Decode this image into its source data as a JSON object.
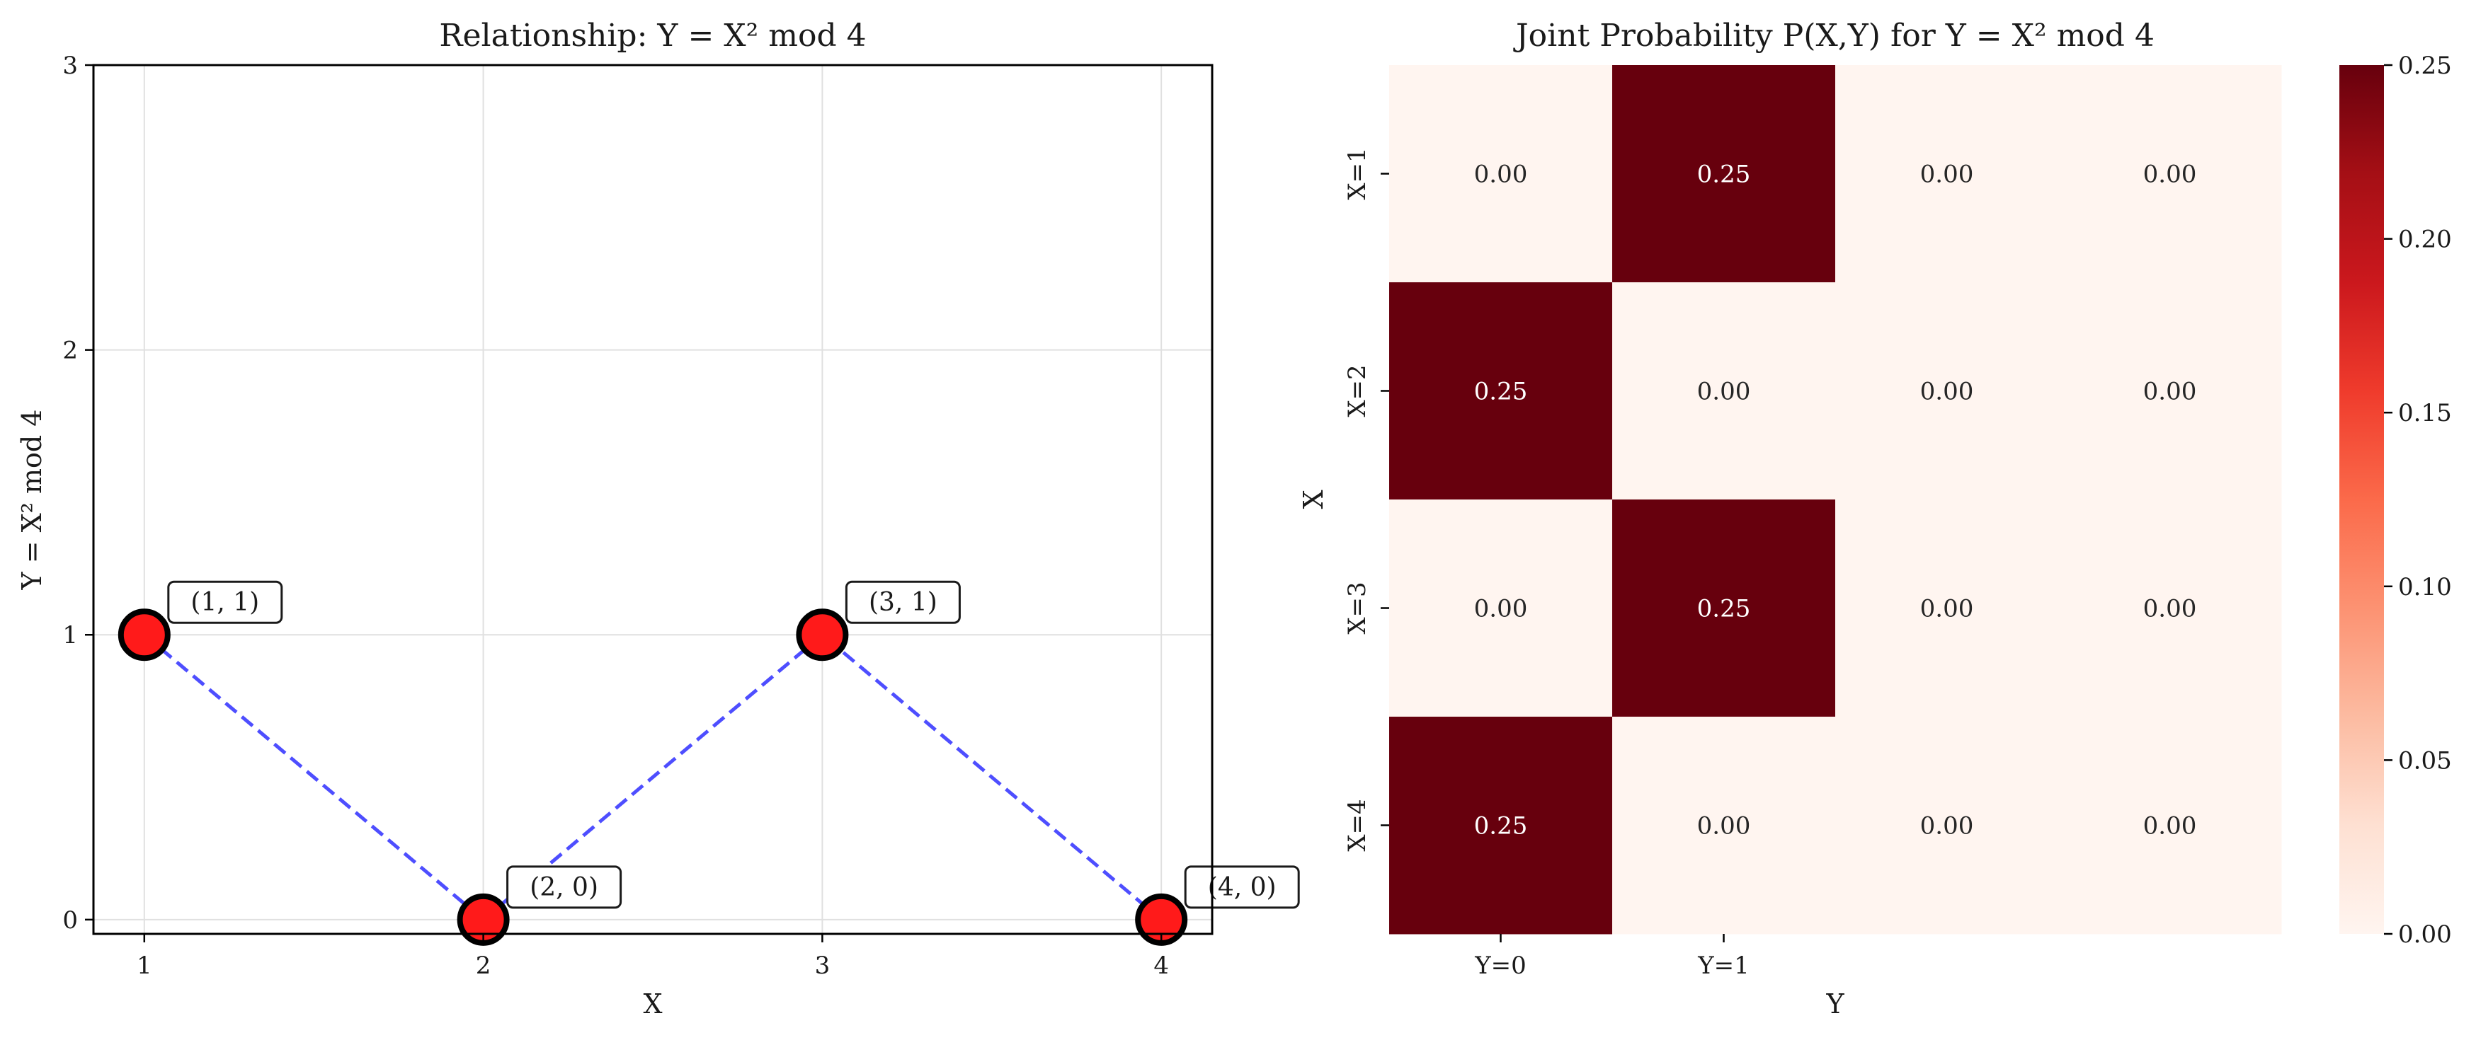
{
  "chart_data": [
    {
      "type": "scatter",
      "title": "Relationship: Y = X² mod 4",
      "xlabel": "X",
      "ylabel": "Y = X² mod 4",
      "xlim": [
        0.85,
        4.15
      ],
      "ylim": [
        -0.05,
        3.0
      ],
      "x_ticks": [
        "1",
        "2",
        "3",
        "4"
      ],
      "y_ticks": [
        "0",
        "1",
        "2",
        "3"
      ],
      "grid": true,
      "line_style": "dashed",
      "line_color": "#3b3bff",
      "marker_color": "#ff1a1a",
      "marker_edge_color": "#000000",
      "points": [
        {
          "x": 1,
          "y": 1,
          "label": "(1, 1)"
        },
        {
          "x": 2,
          "y": 0,
          "label": "(2, 0)"
        },
        {
          "x": 3,
          "y": 1,
          "label": "(3, 1)"
        },
        {
          "x": 4,
          "y": 0,
          "label": "(4, 0)"
        }
      ]
    },
    {
      "type": "heatmap",
      "title": "Joint Probability P(X,Y) for Y = X² mod 4",
      "xlabel": "Y",
      "ylabel": "X",
      "x_ticks": [
        "Y=0",
        "Y=1",
        "",
        ""
      ],
      "y_ticks": [
        "X=1",
        "X=2",
        "X=3",
        "X=4"
      ],
      "values": [
        [
          0.0,
          0.25,
          0.0,
          0.0
        ],
        [
          0.25,
          0.0,
          0.0,
          0.0
        ],
        [
          0.0,
          0.25,
          0.0,
          0.0
        ],
        [
          0.25,
          0.0,
          0.0,
          0.0
        ]
      ],
      "value_labels": [
        [
          "0.00",
          "0.25",
          "0.00",
          "0.00"
        ],
        [
          "0.25",
          "0.00",
          "0.00",
          "0.00"
        ],
        [
          "0.00",
          "0.25",
          "0.00",
          "0.00"
        ],
        [
          "0.25",
          "0.00",
          "0.00",
          "0.00"
        ]
      ],
      "colorbar": {
        "min": 0.0,
        "max": 0.25,
        "ticks": [
          "0.00",
          "0.05",
          "0.10",
          "0.15",
          "0.20",
          "0.25"
        ],
        "colormap": "Reds",
        "low_color": "#fff5f0",
        "high_color": "#67000d"
      }
    }
  ]
}
